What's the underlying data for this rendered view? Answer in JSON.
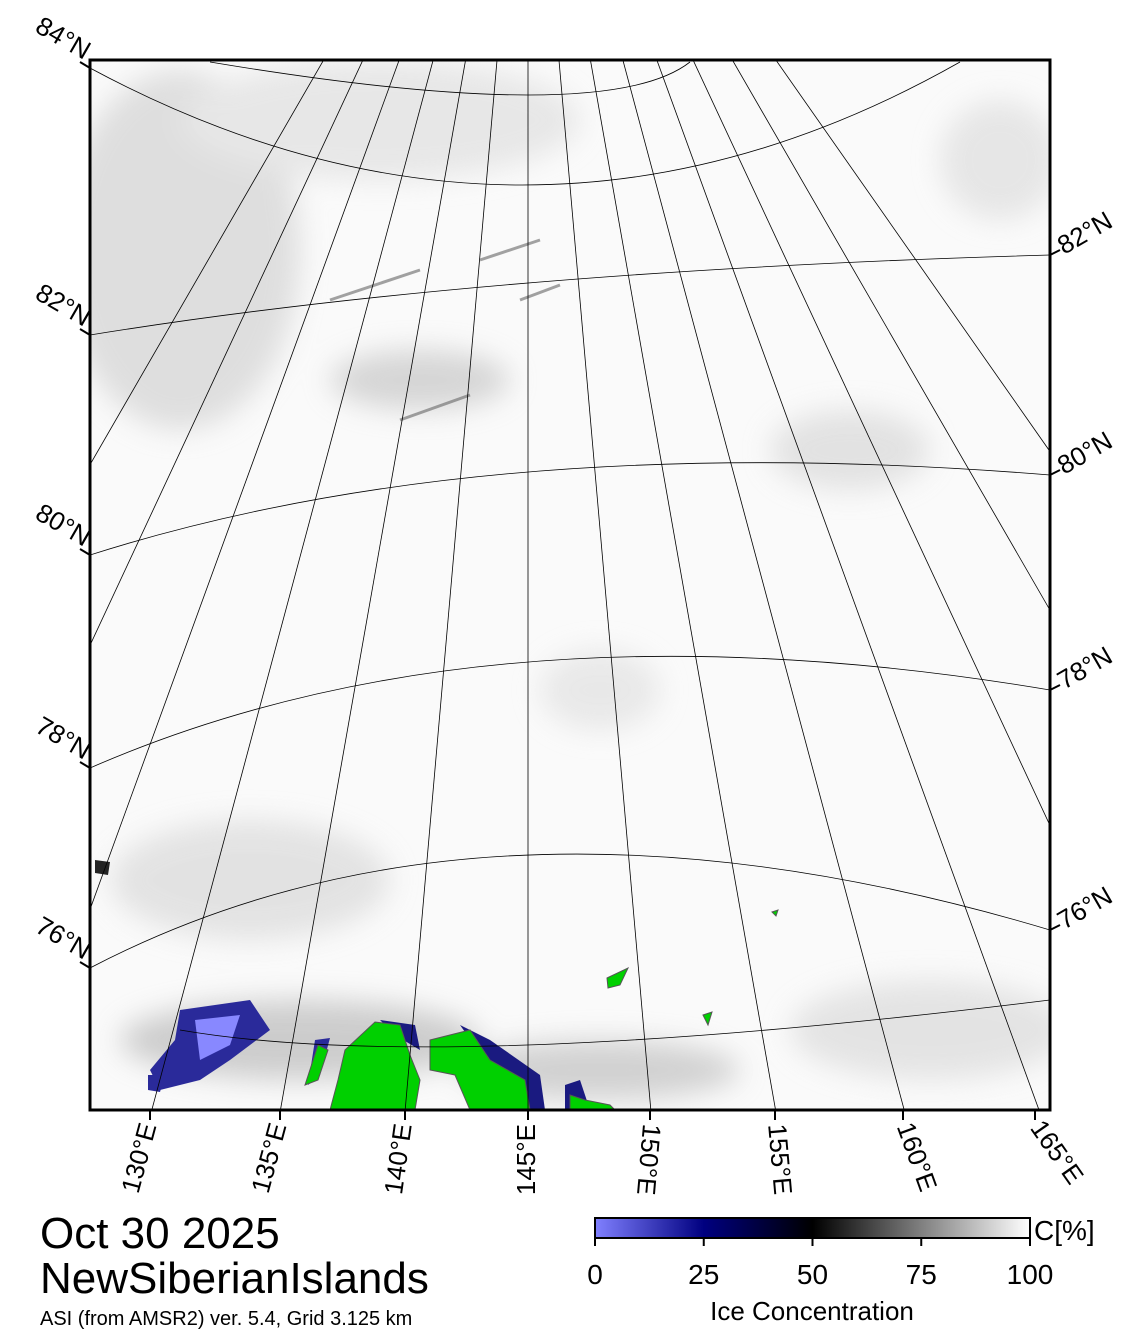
{
  "map": {
    "lat_labels_left": [
      "84°N",
      "82°N",
      "80°N",
      "78°N",
      "76°N"
    ],
    "lat_labels_right": [
      "82°N",
      "80°N",
      "78°N",
      "76°N"
    ],
    "lon_labels": [
      "130°E",
      "135°E",
      "140°E",
      "145°E",
      "150°E",
      "155°E",
      "160°E",
      "165°E"
    ]
  },
  "date": "Oct 30 2025",
  "region": "NewSiberianIslands",
  "source": "ASI (from AMSR2) ver. 5.4,  Grid 3.125 km",
  "colorbar": {
    "range": [
      0,
      100
    ],
    "ticks": [
      0,
      25,
      50,
      75,
      100
    ],
    "unit": "C[%]",
    "label": "Ice Concentration"
  }
}
